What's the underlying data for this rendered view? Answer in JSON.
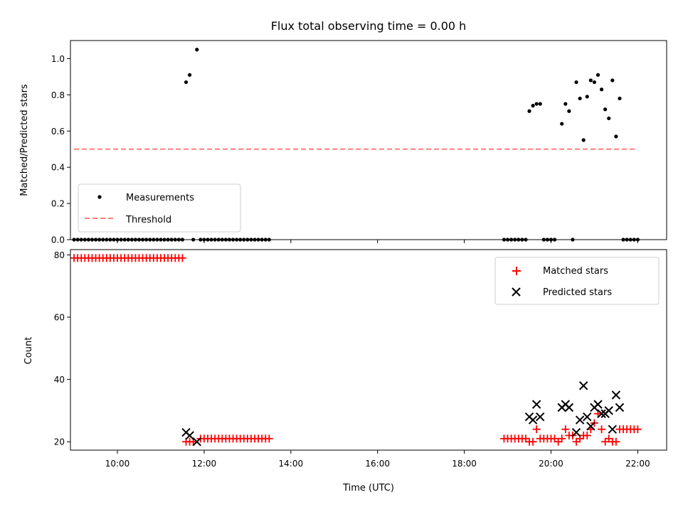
{
  "chart_data": [
    {
      "type": "scatter",
      "title": "Flux total observing time = 0.00 h",
      "xlabel": "",
      "ylabel": "Matched/Predicted stars",
      "xlim": [
        "08:55",
        "22:40"
      ],
      "ylim": [
        0,
        1.1
      ],
      "yticks": [
        "0.0",
        "0.2",
        "0.4",
        "0.6",
        "0.8",
        "1.0"
      ],
      "legend": {
        "position": "lower-left",
        "entries": [
          "Measurements",
          "Threshold"
        ]
      },
      "colors": {
        "measurements": "#000000",
        "threshold": "#ff7f7f"
      },
      "threshold": {
        "name": "Threshold",
        "y": 0.5,
        "x_start": "09:00",
        "x_end": "22:00"
      },
      "series": [
        {
          "name": "Measurements",
          "points": [
            [
              "09:00",
              0
            ],
            [
              "09:05",
              0
            ],
            [
              "09:10",
              0
            ],
            [
              "09:15",
              0
            ],
            [
              "09:20",
              0
            ],
            [
              "09:25",
              0
            ],
            [
              "09:30",
              0
            ],
            [
              "09:35",
              0
            ],
            [
              "09:40",
              0
            ],
            [
              "09:45",
              0
            ],
            [
              "09:50",
              0
            ],
            [
              "09:55",
              0
            ],
            [
              "10:00",
              0
            ],
            [
              "10:05",
              0
            ],
            [
              "10:10",
              0
            ],
            [
              "10:15",
              0
            ],
            [
              "10:20",
              0
            ],
            [
              "10:25",
              0
            ],
            [
              "10:30",
              0
            ],
            [
              "10:35",
              0
            ],
            [
              "10:40",
              0
            ],
            [
              "10:45",
              0
            ],
            [
              "10:50",
              0
            ],
            [
              "10:55",
              0
            ],
            [
              "11:00",
              0
            ],
            [
              "11:05",
              0
            ],
            [
              "11:10",
              0
            ],
            [
              "11:15",
              0
            ],
            [
              "11:20",
              0
            ],
            [
              "11:25",
              0
            ],
            [
              "11:30",
              0
            ],
            [
              "11:35",
              0.87
            ],
            [
              "11:40",
              0.91
            ],
            [
              "11:50",
              1.05
            ],
            [
              "11:45",
              0
            ],
            [
              "11:55",
              0
            ],
            [
              "12:00",
              0
            ],
            [
              "12:05",
              0
            ],
            [
              "12:10",
              0
            ],
            [
              "12:15",
              0
            ],
            [
              "12:20",
              0
            ],
            [
              "12:25",
              0
            ],
            [
              "12:30",
              0
            ],
            [
              "12:35",
              0
            ],
            [
              "12:40",
              0
            ],
            [
              "12:45",
              0
            ],
            [
              "12:50",
              0
            ],
            [
              "12:55",
              0
            ],
            [
              "13:00",
              0
            ],
            [
              "13:05",
              0
            ],
            [
              "13:10",
              0
            ],
            [
              "13:15",
              0
            ],
            [
              "13:20",
              0
            ],
            [
              "13:25",
              0
            ],
            [
              "13:30",
              0
            ],
            [
              "18:55",
              0
            ],
            [
              "19:00",
              0
            ],
            [
              "19:05",
              0
            ],
            [
              "19:10",
              0
            ],
            [
              "19:15",
              0
            ],
            [
              "19:20",
              0
            ],
            [
              "19:25",
              0
            ],
            [
              "19:30",
              0.71
            ],
            [
              "19:35",
              0.74
            ],
            [
              "19:40",
              0.75
            ],
            [
              "19:45",
              0.75
            ],
            [
              "19:50",
              0
            ],
            [
              "19:55",
              0
            ],
            [
              "20:00",
              0
            ],
            [
              "20:05",
              0
            ],
            [
              "20:15",
              0.64
            ],
            [
              "20:20",
              0.75
            ],
            [
              "20:25",
              0.71
            ],
            [
              "20:30",
              0
            ],
            [
              "20:35",
              0.87
            ],
            [
              "20:40",
              0.78
            ],
            [
              "20:45",
              0.55
            ],
            [
              "20:50",
              0.79
            ],
            [
              "20:55",
              0.88
            ],
            [
              "21:00",
              0.87
            ],
            [
              "21:05",
              0.91
            ],
            [
              "21:10",
              0.83
            ],
            [
              "21:15",
              0.72
            ],
            [
              "21:20",
              0.67
            ],
            [
              "21:25",
              0.88
            ],
            [
              "21:30",
              0.57
            ],
            [
              "21:35",
              0.78
            ],
            [
              "21:40",
              0
            ],
            [
              "21:45",
              0
            ],
            [
              "21:50",
              0
            ],
            [
              "21:55",
              0
            ],
            [
              "22:00",
              0
            ]
          ]
        }
      ]
    },
    {
      "type": "scatter",
      "title": "",
      "xlabel": "Time (UTC)",
      "ylabel": "Count",
      "xlim": [
        "08:55",
        "22:40"
      ],
      "ylim": [
        17.3,
        81.7
      ],
      "yticks": [
        "20",
        "40",
        "60",
        "80"
      ],
      "xticks": [
        "10:00",
        "12:00",
        "14:00",
        "16:00",
        "18:00",
        "20:00",
        "22:00"
      ],
      "legend": {
        "position": "upper-right",
        "entries": [
          "Matched stars",
          "Predicted stars"
        ]
      },
      "colors": {
        "matched": "#ff0000",
        "predicted": "#000000"
      },
      "series": [
        {
          "name": "Matched stars",
          "points": [
            [
              "09:00",
              79
            ],
            [
              "09:05",
              79
            ],
            [
              "09:10",
              79
            ],
            [
              "09:15",
              79
            ],
            [
              "09:20",
              79
            ],
            [
              "09:25",
              79
            ],
            [
              "09:30",
              79
            ],
            [
              "09:35",
              79
            ],
            [
              "09:40",
              79
            ],
            [
              "09:45",
              79
            ],
            [
              "09:50",
              79
            ],
            [
              "09:55",
              79
            ],
            [
              "10:00",
              79
            ],
            [
              "10:05",
              79
            ],
            [
              "10:10",
              79
            ],
            [
              "10:15",
              79
            ],
            [
              "10:20",
              79
            ],
            [
              "10:25",
              79
            ],
            [
              "10:30",
              79
            ],
            [
              "10:35",
              79
            ],
            [
              "10:40",
              79
            ],
            [
              "10:45",
              79
            ],
            [
              "10:50",
              79
            ],
            [
              "10:55",
              79
            ],
            [
              "11:00",
              79
            ],
            [
              "11:05",
              79
            ],
            [
              "11:10",
              79
            ],
            [
              "11:15",
              79
            ],
            [
              "11:20",
              79
            ],
            [
              "11:25",
              79
            ],
            [
              "11:30",
              79
            ],
            [
              "11:35",
              20
            ],
            [
              "11:40",
              20
            ],
            [
              "11:45",
              20
            ],
            [
              "11:55",
              21
            ],
            [
              "12:00",
              21
            ],
            [
              "12:05",
              21
            ],
            [
              "12:10",
              21
            ],
            [
              "12:15",
              21
            ],
            [
              "12:20",
              21
            ],
            [
              "12:25",
              21
            ],
            [
              "12:30",
              21
            ],
            [
              "12:35",
              21
            ],
            [
              "12:40",
              21
            ],
            [
              "12:45",
              21
            ],
            [
              "12:50",
              21
            ],
            [
              "12:55",
              21
            ],
            [
              "13:00",
              21
            ],
            [
              "13:05",
              21
            ],
            [
              "13:10",
              21
            ],
            [
              "13:15",
              21
            ],
            [
              "13:20",
              21
            ],
            [
              "13:25",
              21
            ],
            [
              "13:30",
              21
            ],
            [
              "18:55",
              21
            ],
            [
              "19:00",
              21
            ],
            [
              "19:05",
              21
            ],
            [
              "19:10",
              21
            ],
            [
              "19:15",
              21
            ],
            [
              "19:20",
              21
            ],
            [
              "19:25",
              21
            ],
            [
              "19:30",
              20
            ],
            [
              "19:35",
              20
            ],
            [
              "19:40",
              24
            ],
            [
              "19:45",
              21
            ],
            [
              "19:50",
              21
            ],
            [
              "19:55",
              21
            ],
            [
              "20:00",
              21
            ],
            [
              "20:05",
              21
            ],
            [
              "20:10",
              20
            ],
            [
              "20:15",
              21
            ],
            [
              "20:20",
              24
            ],
            [
              "20:25",
              22
            ],
            [
              "20:30",
              22
            ],
            [
              "20:35",
              20
            ],
            [
              "20:40",
              21
            ],
            [
              "20:45",
              22
            ],
            [
              "20:50",
              22
            ],
            [
              "20:55",
              24
            ],
            [
              "21:00",
              26
            ],
            [
              "21:05",
              29
            ],
            [
              "21:10",
              24
            ],
            [
              "21:15",
              20
            ],
            [
              "21:20",
              21
            ],
            [
              "21:25",
              20
            ],
            [
              "21:30",
              20
            ],
            [
              "21:35",
              24
            ],
            [
              "21:40",
              24
            ],
            [
              "21:45",
              24
            ],
            [
              "21:50",
              24
            ],
            [
              "21:55",
              24
            ],
            [
              "22:00",
              24
            ]
          ]
        },
        {
          "name": "Predicted stars",
          "points": [
            [
              "11:35",
              23
            ],
            [
              "11:40",
              22
            ],
            [
              "11:50",
              20
            ],
            [
              "19:30",
              28
            ],
            [
              "19:35",
              27
            ],
            [
              "19:40",
              32
            ],
            [
              "19:45",
              28
            ],
            [
              "20:15",
              31
            ],
            [
              "20:20",
              32
            ],
            [
              "20:25",
              31
            ],
            [
              "20:35",
              23
            ],
            [
              "20:40",
              27
            ],
            [
              "20:45",
              38
            ],
            [
              "20:50",
              28
            ],
            [
              "20:55",
              25
            ],
            [
              "21:00",
              31
            ],
            [
              "21:05",
              32
            ],
            [
              "21:10",
              29
            ],
            [
              "21:15",
              29
            ],
            [
              "21:20",
              30
            ],
            [
              "21:25",
              24
            ],
            [
              "21:30",
              35
            ],
            [
              "21:35",
              31
            ]
          ]
        }
      ]
    }
  ]
}
